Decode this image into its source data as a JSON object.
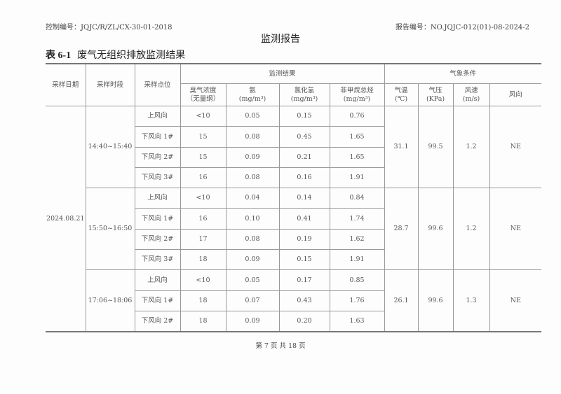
{
  "header": {
    "control_no": "控制编号：JQJC/R/ZL/CX-30-01-2018",
    "report_no": "报告编号：NO.JQJC-012(01)-08-2024-2",
    "title": "监测报告"
  },
  "caption": {
    "num": "表 6-1",
    "text": "废气无组织排放监测结果"
  },
  "columns": {
    "date": "采样日期",
    "period": "采样时段",
    "point": "采样点位",
    "results": "监测结果",
    "weather": "气象条件",
    "odor": "臭气浓度",
    "odor_unit": "（无量纲）",
    "nh3": "氨",
    "nh3_unit": "(mg/m³)",
    "hcl": "氯化氢",
    "hcl_unit": "(mg/m³)",
    "nmhc": "非甲烷总烃",
    "nmhc_unit": "(mg/m³)",
    "temp": "气温",
    "temp_unit": "(℃)",
    "press": "气压",
    "press_unit": "(KPa)",
    "wind": "风速",
    "wind_unit": "(m/s)",
    "dir": "风向"
  },
  "date": "2024.08.21",
  "groups": [
    {
      "period": "14:40~15:40",
      "temp": "31.1",
      "press": "99.5",
      "wind": "1.2",
      "dir": "NE",
      "rows": [
        [
          "上风向",
          "<10",
          "0.05",
          "0.15",
          "0.76"
        ],
        [
          "下风向 1#",
          "15",
          "0.08",
          "0.45",
          "1.65"
        ],
        [
          "下风向 2#",
          "15",
          "0.09",
          "0.21",
          "1.65"
        ],
        [
          "下风向 3#",
          "16",
          "0.08",
          "0.16",
          "1.91"
        ]
      ]
    },
    {
      "period": "15:50~16:50",
      "temp": "28.7",
      "press": "99.6",
      "wind": "1.2",
      "dir": "NE",
      "rows": [
        [
          "上风向",
          "<10",
          "0.04",
          "0.14",
          "0.84"
        ],
        [
          "下风向 1#",
          "16",
          "0.10",
          "0.41",
          "1.74"
        ],
        [
          "下风向 2#",
          "17",
          "0.08",
          "0.19",
          "1.62"
        ],
        [
          "下风向 3#",
          "18",
          "0.09",
          "0.15",
          "1.91"
        ]
      ]
    },
    {
      "period": "17:06~18:06",
      "temp": "26.1",
      "press": "99.6",
      "wind": "1.3",
      "dir": "NE",
      "rows": [
        [
          "上风向",
          "<10",
          "0.05",
          "0.17",
          "0.85"
        ],
        [
          "下风向 1#",
          "18",
          "0.07",
          "0.43",
          "1.76"
        ],
        [
          "下风向 2#",
          "18",
          "0.09",
          "0.20",
          "1.63"
        ]
      ]
    }
  ],
  "footer": "第 7 页 共 18 页"
}
